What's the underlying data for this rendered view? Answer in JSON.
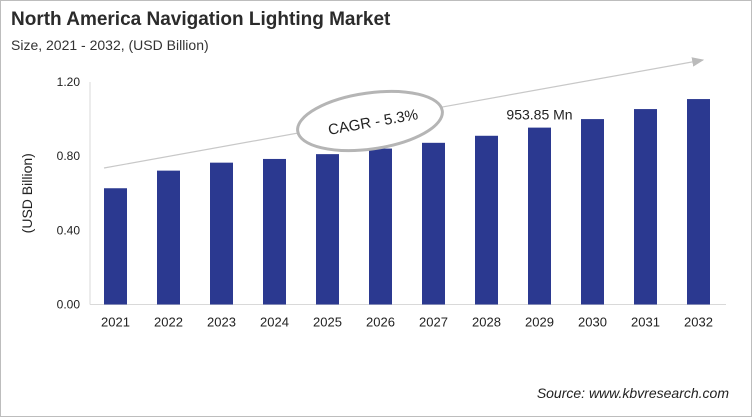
{
  "chart_data": {
    "type": "bar",
    "title": "North America Navigation Lighting Market",
    "subtitle": "Size, 2021 - 2032, (USD Billion)",
    "ylabel": "(USD Billion)",
    "xlabel": "",
    "categories": [
      "2021",
      "2022",
      "2023",
      "2024",
      "2025",
      "2026",
      "2027",
      "2028",
      "2029",
      "2030",
      "2031",
      "2032"
    ],
    "values": [
      0.627,
      0.722,
      0.765,
      0.785,
      0.811,
      0.841,
      0.872,
      0.91,
      0.954,
      1.0,
      1.054,
      1.108
    ],
    "ylim": [
      0,
      1.2
    ],
    "yticks": [
      "0.00",
      "0.40",
      "0.80",
      "1.20"
    ],
    "ytick_values": [
      0,
      0.4,
      0.8,
      1.2
    ],
    "grid": false,
    "bar_color": "#2b3990",
    "annotations": {
      "cagr": "CAGR - 5.3%",
      "data_label": "953.85 Mn",
      "data_label_category": "2029"
    },
    "source": "Source: www.kbvresearch.com"
  }
}
